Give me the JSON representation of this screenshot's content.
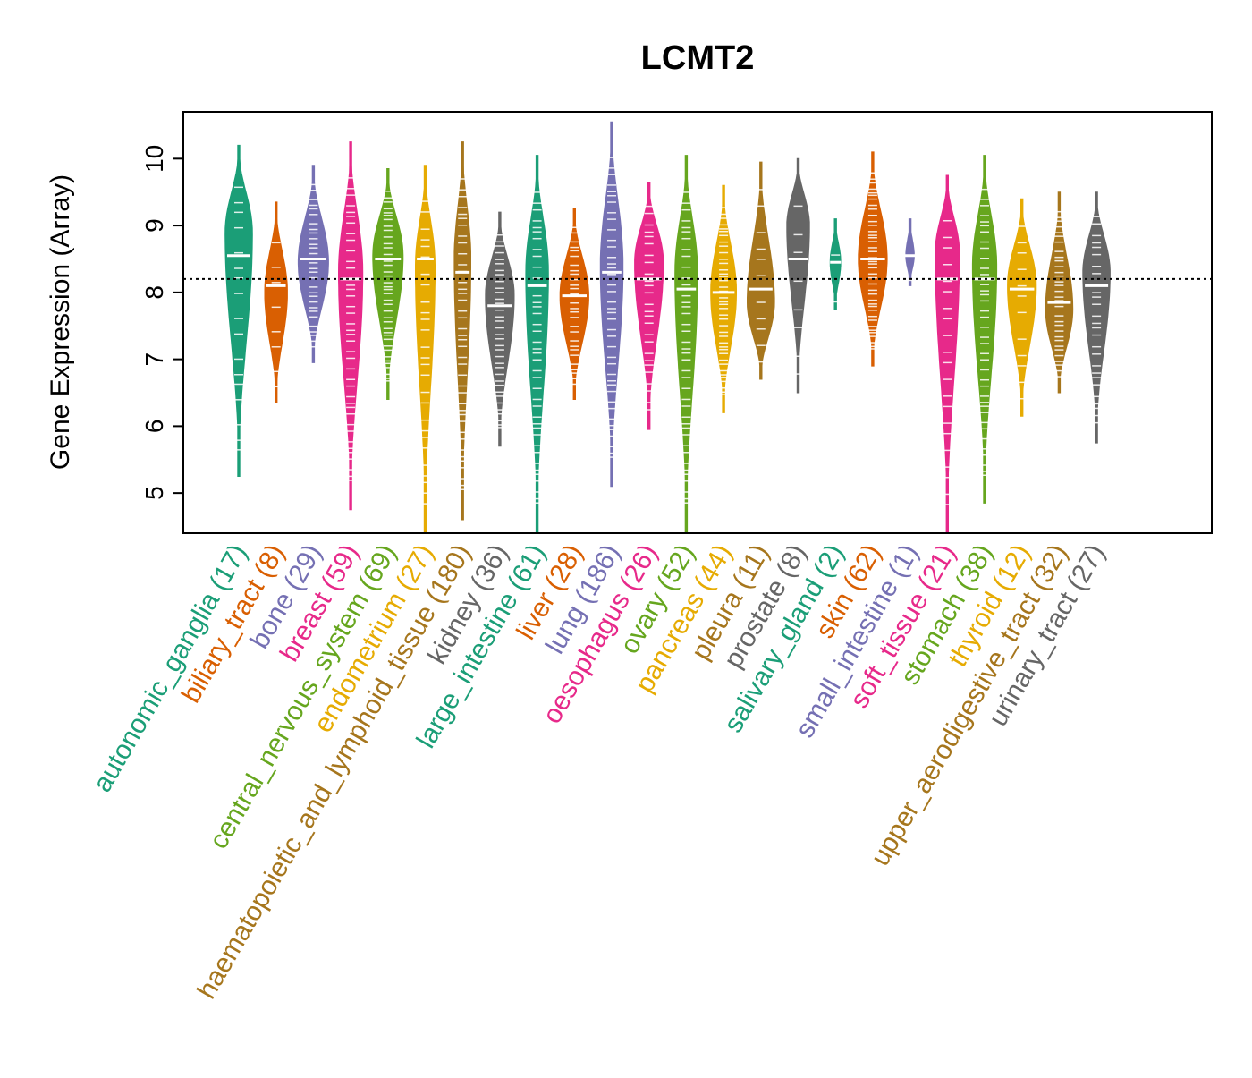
{
  "chart_data": {
    "type": "violin",
    "title": "LCMT2",
    "ylabel": "Gene Expression (Array)",
    "xlabel": "",
    "ylim": [
      4.4,
      10.7
    ],
    "yticks": [
      5,
      6,
      7,
      8,
      9,
      10
    ],
    "reference_line": 8.2,
    "categories": [
      {
        "name": "autonomic_ganglia",
        "n": 17,
        "label": "autonomic_ganglia (17)",
        "color": "#1b9e77",
        "min": 5.25,
        "max": 10.2,
        "median": 8.55,
        "peak": 8.9,
        "width": 0.9
      },
      {
        "name": "biliary_tract",
        "n": 8,
        "label": "biliary_tract (8)",
        "color": "#d95f02",
        "min": 6.35,
        "max": 9.35,
        "median": 8.1,
        "peak": 8.0,
        "width": 0.75
      },
      {
        "name": "bone",
        "n": 29,
        "label": "bone (29)",
        "color": "#7570b3",
        "min": 6.95,
        "max": 9.9,
        "median": 8.5,
        "peak": 8.45,
        "width": 1.0
      },
      {
        "name": "breast",
        "n": 59,
        "label": "breast (59)",
        "color": "#e7298a",
        "min": 4.75,
        "max": 10.25,
        "median": 8.2,
        "peak": 8.3,
        "width": 0.8
      },
      {
        "name": "central_nervous_system",
        "n": 69,
        "label": "central_nervous_system (69)",
        "color": "#66a61e",
        "min": 6.4,
        "max": 9.85,
        "median": 8.5,
        "peak": 8.55,
        "width": 1.0
      },
      {
        "name": "endometrium",
        "n": 27,
        "label": "endometrium (27)",
        "color": "#e6ab02",
        "min": 4.4,
        "max": 9.9,
        "median": 8.5,
        "peak": 8.4,
        "width": 0.65
      },
      {
        "name": "haematopoietic_and_lymphoid_tissue",
        "n": 180,
        "label": "haematopoietic_and_lymphoid_tissue (180)",
        "color": "#a6761d",
        "min": 4.6,
        "max": 10.25,
        "median": 8.3,
        "peak": 8.5,
        "width": 0.55
      },
      {
        "name": "kidney",
        "n": 36,
        "label": "kidney (36)",
        "color": "#666666",
        "min": 5.7,
        "max": 9.2,
        "median": 7.8,
        "peak": 7.95,
        "width": 0.95
      },
      {
        "name": "large_intestine",
        "n": 61,
        "label": "large_intestine (61)",
        "color": "#1b9e77",
        "min": 4.4,
        "max": 10.05,
        "median": 8.1,
        "peak": 8.3,
        "width": 0.75
      },
      {
        "name": "liver",
        "n": 28,
        "label": "liver (28)",
        "color": "#d95f02",
        "min": 6.4,
        "max": 9.25,
        "median": 7.95,
        "peak": 7.95,
        "width": 0.95
      },
      {
        "name": "lung",
        "n": 186,
        "label": "lung (186)",
        "color": "#7570b3",
        "min": 5.1,
        "max": 10.55,
        "median": 8.3,
        "peak": 8.4,
        "width": 0.75
      },
      {
        "name": "oesophagus",
        "n": 26,
        "label": "oesophagus (26)",
        "color": "#e7298a",
        "min": 5.95,
        "max": 9.65,
        "median": 8.2,
        "peak": 8.45,
        "width": 0.95
      },
      {
        "name": "ovary",
        "n": 52,
        "label": "ovary (52)",
        "color": "#66a61e",
        "min": 4.4,
        "max": 10.05,
        "median": 8.05,
        "peak": 8.3,
        "width": 0.75
      },
      {
        "name": "pancreas",
        "n": 44,
        "label": "pancreas (44)",
        "color": "#e6ab02",
        "min": 6.2,
        "max": 9.6,
        "median": 8.0,
        "peak": 8.0,
        "width": 0.85
      },
      {
        "name": "pleura",
        "n": 11,
        "label": "pleura (11)",
        "color": "#a6761d",
        "min": 6.7,
        "max": 9.95,
        "median": 8.05,
        "peak": 7.85,
        "width": 0.9
      },
      {
        "name": "prostate",
        "n": 8,
        "label": "prostate (8)",
        "color": "#666666",
        "min": 6.5,
        "max": 10.0,
        "median": 8.5,
        "peak": 9.0,
        "width": 0.75
      },
      {
        "name": "salivary_gland",
        "n": 2,
        "label": "salivary_gland (2)",
        "color": "#1b9e77",
        "min": 7.75,
        "max": 9.1,
        "median": 8.45,
        "peak": 8.45,
        "width": 0.35
      },
      {
        "name": "skin",
        "n": 62,
        "label": "skin (62)",
        "color": "#d95f02",
        "min": 6.9,
        "max": 10.1,
        "median": 8.5,
        "peak": 8.5,
        "width": 0.95
      },
      {
        "name": "small_intestine",
        "n": 1,
        "label": "small_intestine (1)",
        "color": "#7570b3",
        "min": 8.1,
        "max": 9.1,
        "median": 8.55,
        "peak": 8.55,
        "width": 0.28
      },
      {
        "name": "soft_tissue",
        "n": 21,
        "label": "soft_tissue (21)",
        "color": "#e7298a",
        "min": 4.4,
        "max": 9.75,
        "median": 8.2,
        "peak": 8.6,
        "width": 0.8
      },
      {
        "name": "stomach",
        "n": 38,
        "label": "stomach (38)",
        "color": "#66a61e",
        "min": 4.85,
        "max": 10.05,
        "median": 8.2,
        "peak": 8.4,
        "width": 0.8
      },
      {
        "name": "thyroid",
        "n": 12,
        "label": "thyroid (12)",
        "color": "#e6ab02",
        "min": 6.15,
        "max": 9.4,
        "median": 8.05,
        "peak": 8.1,
        "width": 0.95
      },
      {
        "name": "upper_aerodigestive_tract",
        "n": 32,
        "label": "upper_aerodigestive_tract (32)",
        "color": "#a6761d",
        "min": 6.5,
        "max": 9.5,
        "median": 7.85,
        "peak": 7.75,
        "width": 0.9
      },
      {
        "name": "urinary_tract",
        "n": 27,
        "label": "urinary_tract (27)",
        "color": "#666666",
        "min": 5.75,
        "max": 9.5,
        "median": 8.1,
        "peak": 8.3,
        "width": 0.9
      }
    ]
  }
}
